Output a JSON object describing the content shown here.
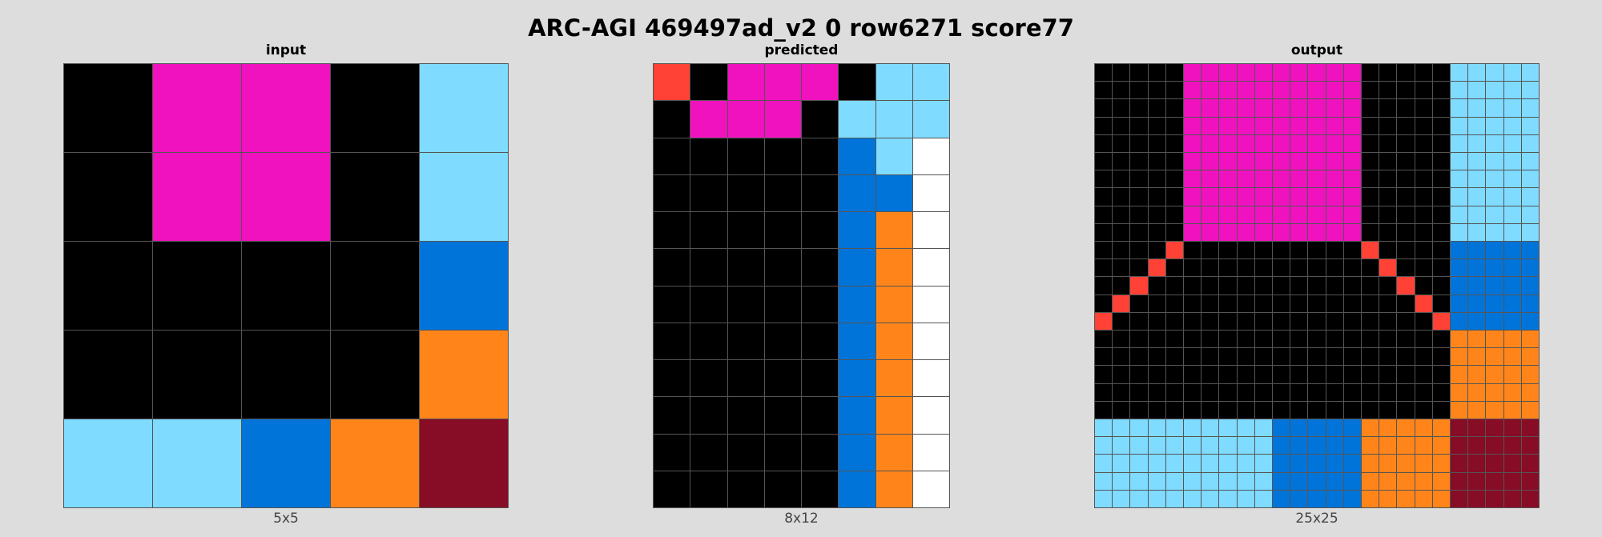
{
  "title": "ARC-AGI 469497ad_v2 0 row6271 score77",
  "palette": {
    "0": "#000000",
    "1": "#0074D9",
    "2": "#FF4136",
    "5": "#FFFFFF",
    "6": "#F012BE",
    "7": "#FF851B",
    "8": "#7FDBFF",
    "9": "#870C25"
  },
  "panels": [
    {
      "label": "input",
      "dims": "5x5",
      "rows": [
        "06608",
        "06608",
        "00001",
        "00007",
        "88179"
      ]
    },
    {
      "label": "predicted",
      "dims": "8x12",
      "rows": [
        "20666088",
        "06660888",
        "00000185",
        "00000115",
        "00000175",
        "00000175",
        "00000175",
        "00000175",
        "00000175",
        "00000175",
        "00000175",
        "00000175"
      ]
    },
    {
      "label": "output",
      "dims": "25x25",
      "rows": [
        "0000066666666660000088888",
        "0000066666666660000088888",
        "0000066666666660000088888",
        "0000066666666660000088888",
        "0000066666666660000088888",
        "0000066666666660000088888",
        "0000066666666660000088888",
        "0000066666666660000088888",
        "0000066666666660000088888",
        "0000066666666660000088888",
        "0000200000000002000011111",
        "0002000000000000200011111",
        "0020000000000000020011111",
        "0200000000000000002011111",
        "2000000000000000000211111",
        "0000000000000000000077777",
        "0000000000000000000077777",
        "0000000000000000000077777",
        "0000000000000000000077777",
        "0000000000000000000077777",
        "8888888888111117777799999",
        "8888888888111117777799999",
        "8888888888111117777799999",
        "8888888888111117777799999",
        "8888888888111117777799999"
      ]
    }
  ]
}
